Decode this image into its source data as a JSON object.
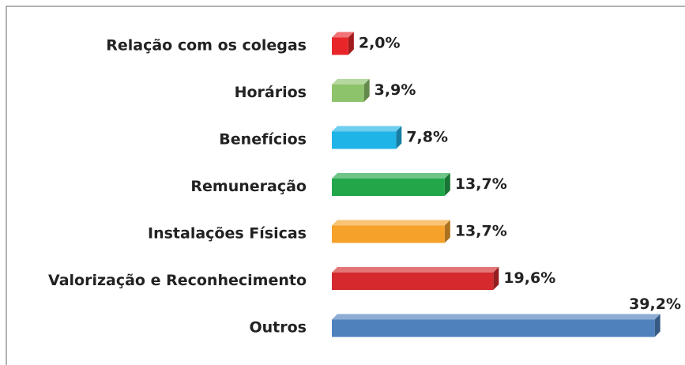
{
  "chart_data": {
    "type": "bar3d-horizontal",
    "categories": [
      "Relação com os colegas",
      "Horários",
      "Benefícios",
      "Remuneração",
      "Instalações Físicas",
      "Valorização e Reconhecimento",
      "Outros"
    ],
    "values": [
      2.0,
      3.9,
      7.8,
      13.7,
      13.7,
      19.6,
      39.2
    ],
    "value_labels": [
      "2,0%",
      "3,9%",
      "7,8%",
      "13,7%",
      "13,7%",
      "19,6%",
      "39,2%"
    ],
    "colors": [
      "#e8262a",
      "#8dc36b",
      "#1fb4e8",
      "#22a64a",
      "#f5a12a",
      "#d42a2e",
      "#4f81bd"
    ],
    "xlim": [
      0,
      40
    ]
  }
}
